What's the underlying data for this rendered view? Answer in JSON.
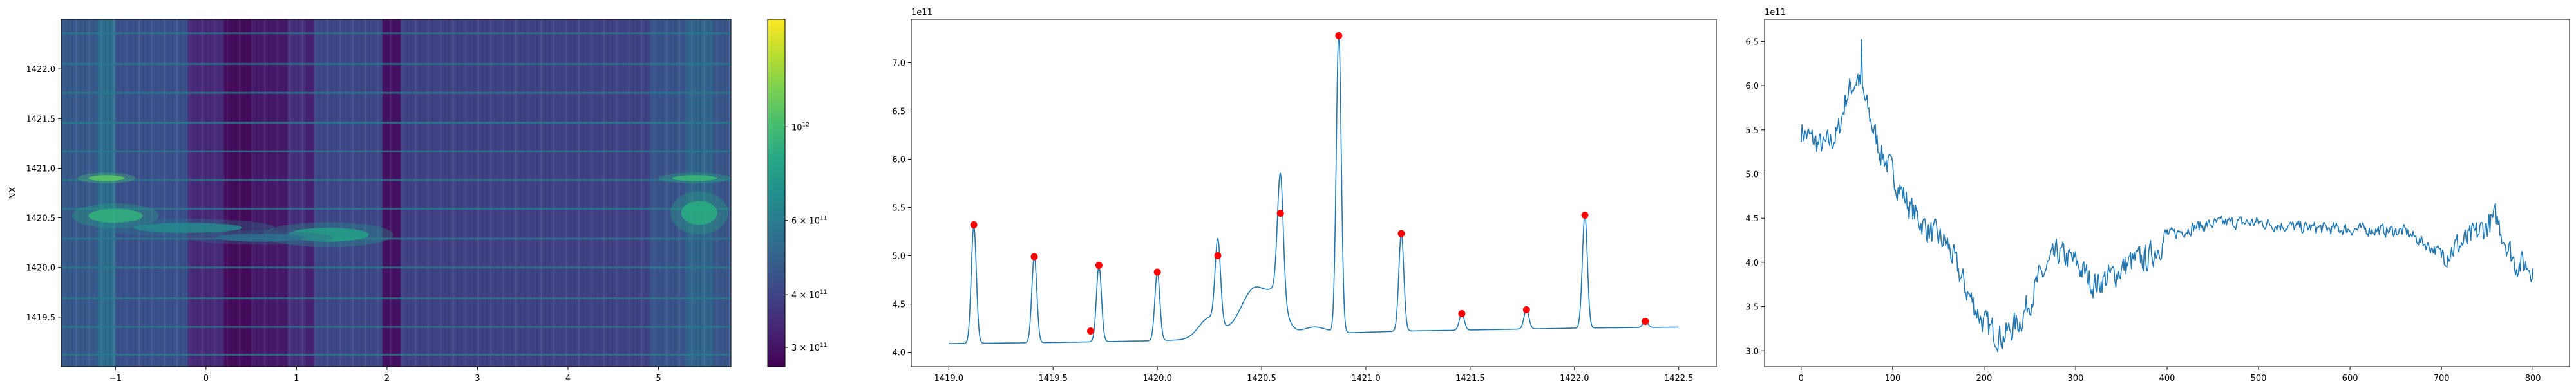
{
  "chart_data": [
    {
      "type": "heatmap",
      "title": "",
      "xlabel": "",
      "ylabel": "NX",
      "xlim": [
        -1.6,
        5.8
      ],
      "ylim": [
        1419.0,
        1422.5
      ],
      "xticks": [
        -1,
        0,
        1,
        2,
        3,
        4,
        5
      ],
      "xtick_labels": [
        "−1",
        "0",
        "1",
        "2",
        "3",
        "4",
        "5"
      ],
      "yticks": [
        1419.5,
        1420.0,
        1420.5,
        1421.0,
        1421.5,
        1422.0
      ],
      "ytick_labels": [
        "1419.5",
        "1420.0",
        "1420.5",
        "1421.0",
        "1421.5",
        "1422.0"
      ],
      "colormap": "viridis",
      "colorbar": {
        "scale": "log",
        "range": [
          270000000000.0,
          1800000000000.0
        ],
        "ticks": [
          300000000000.0,
          400000000000.0,
          600000000000.0,
          1000000000000.0
        ],
        "tick_labels": [
          "3 × 10^11",
          "4 × 10^11",
          "6 × 10^11",
          "10^12"
        ]
      },
      "column_bands": [
        {
          "x": [
            -1.6,
            -1.2
          ],
          "level": 0.28
        },
        {
          "x": [
            -1.2,
            -1.0
          ],
          "level": 0.36
        },
        {
          "x": [
            -1.0,
            -0.2
          ],
          "level": 0.25
        },
        {
          "x": [
            -0.2,
            0.2
          ],
          "level": 0.12
        },
        {
          "x": [
            0.2,
            0.5
          ],
          "level": 0.03
        },
        {
          "x": [
            0.5,
            0.9
          ],
          "level": 0.07
        },
        {
          "x": [
            0.9,
            1.1
          ],
          "level": 0.14
        },
        {
          "x": [
            1.1,
            1.2
          ],
          "level": 0.1
        },
        {
          "x": [
            1.2,
            1.95
          ],
          "level": 0.22
        },
        {
          "x": [
            1.95,
            2.15
          ],
          "level": 0.05
        },
        {
          "x": [
            2.15,
            4.9
          ],
          "level": 0.2
        },
        {
          "x": [
            4.9,
            5.3
          ],
          "level": 0.26
        },
        {
          "x": [
            5.3,
            5.6
          ],
          "level": 0.33
        },
        {
          "x": [
            5.6,
            5.8
          ],
          "level": 0.27
        }
      ],
      "row_lines": [
        1419.12,
        1419.4,
        1419.69,
        1420.0,
        1420.29,
        1420.59,
        1420.88,
        1421.17,
        1421.46,
        1421.76,
        1422.05,
        1422.36
      ]
    },
    {
      "type": "line",
      "title": "",
      "xlabel": "",
      "ylabel": "",
      "offset_text": "1e11",
      "xlim": [
        1418.82,
        1422.68
      ],
      "ylim": [
        3.85,
        7.45
      ],
      "xticks": [
        1419.0,
        1419.5,
        1420.0,
        1420.5,
        1421.0,
        1421.5,
        1422.0,
        1422.5
      ],
      "xtick_labels": [
        "1419.0",
        "1419.5",
        "1420.0",
        "1420.5",
        "1421.0",
        "1421.5",
        "1422.0",
        "1422.5"
      ],
      "yticks": [
        4.0,
        4.5,
        5.0,
        5.5,
        6.0,
        6.5,
        7.0
      ],
      "ytick_labels": [
        "4.0",
        "4.5",
        "5.0",
        "5.5",
        "6.0",
        "6.5",
        "7.0"
      ],
      "baseline": [
        [
          1419.0,
          4.09
        ],
        [
          1419.5,
          4.1
        ],
        [
          1420.0,
          4.12
        ],
        [
          1420.3,
          4.14
        ],
        [
          1420.5,
          4.15
        ],
        [
          1420.9,
          4.2
        ],
        [
          1421.2,
          4.22
        ],
        [
          1421.5,
          4.23
        ],
        [
          1422.0,
          4.25
        ],
        [
          1422.5,
          4.26
        ]
      ],
      "peaks": [
        {
          "x": 1419.12,
          "y": 5.32,
          "w": 0.012
        },
        {
          "x": 1419.41,
          "y": 4.99,
          "w": 0.012
        },
        {
          "x": 1419.72,
          "y": 4.9,
          "w": 0.012
        },
        {
          "x": 1420.0,
          "y": 4.83,
          "w": 0.012
        },
        {
          "x": 1420.29,
          "y": 5.0,
          "w": 0.013
        },
        {
          "x": 1420.59,
          "y": 5.44,
          "w": 0.014
        },
        {
          "x": 1420.87,
          "y": 7.28,
          "w": 0.012
        },
        {
          "x": 1421.17,
          "y": 5.23,
          "w": 0.012
        },
        {
          "x": 1421.46,
          "y": 4.4,
          "w": 0.012
        },
        {
          "x": 1421.77,
          "y": 4.44,
          "w": 0.012
        },
        {
          "x": 1422.05,
          "y": 5.42,
          "w": 0.012
        },
        {
          "x": 1422.34,
          "y": 4.32,
          "w": 0.012
        }
      ],
      "bumps": [
        {
          "x": 1420.25,
          "y": 0.22,
          "w": 0.05
        },
        {
          "x": 1420.47,
          "y": 0.52,
          "w": 0.07
        },
        {
          "x": 1420.58,
          "y": 0.3,
          "w": 0.04
        },
        {
          "x": 1420.75,
          "y": 0.08,
          "w": 0.06
        }
      ],
      "markers": [
        {
          "x": 1419.12,
          "y": 5.32
        },
        {
          "x": 1419.41,
          "y": 4.99
        },
        {
          "x": 1419.68,
          "y": 4.22
        },
        {
          "x": 1419.72,
          "y": 4.9
        },
        {
          "x": 1420.0,
          "y": 4.83
        },
        {
          "x": 1420.29,
          "y": 5.0
        },
        {
          "x": 1420.59,
          "y": 5.44
        },
        {
          "x": 1420.87,
          "y": 7.28
        },
        {
          "x": 1421.17,
          "y": 5.23
        },
        {
          "x": 1421.46,
          "y": 4.4
        },
        {
          "x": 1421.77,
          "y": 4.44
        },
        {
          "x": 1422.05,
          "y": 5.42
        },
        {
          "x": 1422.34,
          "y": 4.32
        }
      ],
      "line_color": "#1f77b4",
      "marker_color": "#ff0000"
    },
    {
      "type": "line",
      "title": "",
      "xlabel": "",
      "ylabel": "",
      "offset_text": "1e11",
      "xlim": [
        -40,
        840
      ],
      "ylim": [
        2.82,
        6.75
      ],
      "xticks": [
        0,
        100,
        200,
        300,
        400,
        500,
        600,
        700,
        800
      ],
      "xtick_labels": [
        "0",
        "100",
        "200",
        "300",
        "400",
        "500",
        "600",
        "700",
        "800"
      ],
      "yticks": [
        3.0,
        3.5,
        4.0,
        4.5,
        5.0,
        5.5,
        6.0,
        6.5
      ],
      "ytick_labels": [
        "3.0",
        "3.5",
        "4.0",
        "4.5",
        "5.0",
        "5.5",
        "6.0",
        "6.5"
      ],
      "n_points": 801,
      "trend": [
        [
          0,
          5.5
        ],
        [
          10,
          5.4
        ],
        [
          25,
          5.3
        ],
        [
          40,
          5.45
        ],
        [
          50,
          5.9
        ],
        [
          62,
          6.1
        ],
        [
          72,
          5.75
        ],
        [
          85,
          5.3
        ],
        [
          100,
          5.0
        ],
        [
          120,
          4.6
        ],
        [
          140,
          4.35
        ],
        [
          160,
          4.2
        ],
        [
          180,
          3.7
        ],
        [
          200,
          3.3
        ],
        [
          220,
          3.15
        ],
        [
          240,
          3.35
        ],
        [
          260,
          3.8
        ],
        [
          280,
          4.1
        ],
        [
          300,
          4.0
        ],
        [
          320,
          3.75
        ],
        [
          340,
          3.85
        ],
        [
          360,
          4.0
        ],
        [
          380,
          4.05
        ],
        [
          400,
          4.3
        ],
        [
          430,
          4.4
        ],
        [
          460,
          4.45
        ],
        [
          500,
          4.45
        ],
        [
          540,
          4.4
        ],
        [
          580,
          4.38
        ],
        [
          620,
          4.37
        ],
        [
          660,
          4.35
        ],
        [
          700,
          4.1
        ],
        [
          730,
          4.25
        ],
        [
          760,
          4.5
        ],
        [
          780,
          4.0
        ],
        [
          800,
          3.95
        ]
      ],
      "noise_amplitude": 0.14,
      "line_color": "#1f77b4"
    }
  ]
}
